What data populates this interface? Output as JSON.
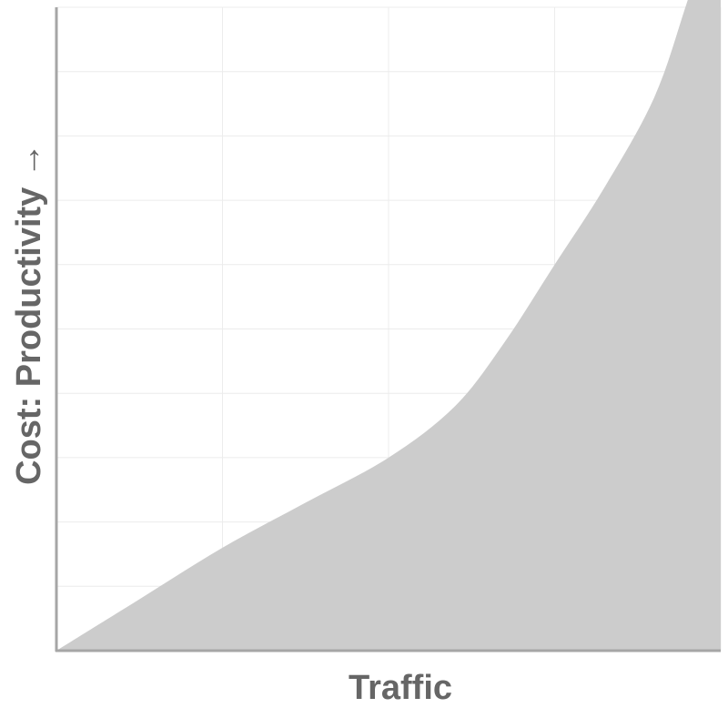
{
  "chart_data": {
    "type": "area",
    "title": "",
    "xlabel": "Traffic",
    "ylabel": "Cost: Productivity →",
    "grid": true,
    "xlim": [
      0,
      4
    ],
    "ylim": [
      0,
      10
    ],
    "x": [
      0,
      0.5,
      1,
      1.5,
      2,
      2.4,
      2.7,
      3,
      3.3,
      3.6,
      3.8,
      4
    ],
    "series": [
      {
        "values": [
          0,
          0.8,
          1.6,
          2.3,
          3.0,
          3.8,
          4.8,
          6.0,
          7.2,
          8.6,
          10.1,
          11.7
        ]
      }
    ],
    "colors": {
      "area": "#cccccc",
      "axis": "#a6a6a6",
      "grid": "#ececec",
      "label": "#666666"
    }
  }
}
